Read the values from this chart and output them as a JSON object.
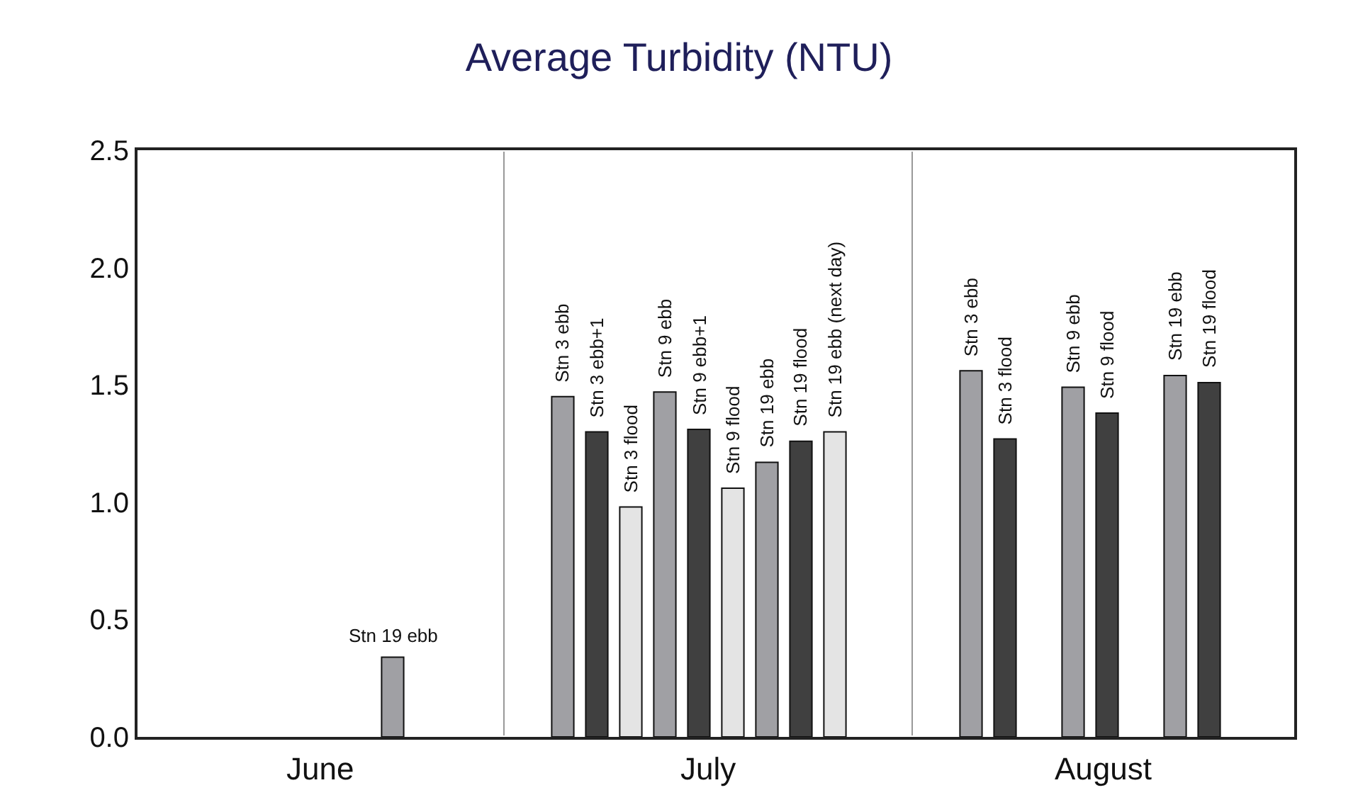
{
  "chart_data": {
    "type": "bar",
    "title": "Average Turbidity (NTU)",
    "categories": [
      null,
      null,
      null,
      null,
      null,
      null,
      null,
      "Stn 19 ebb",
      null,
      null,
      null,
      null,
      "Stn 3 ebb",
      "Stn 3 ebb+1",
      "Stn 3 flood",
      "Stn 9 ebb",
      "Stn 9 ebb+1",
      "Stn 9 flood",
      "Stn 19 ebb",
      "Stn 19 flood",
      "Stn 19 ebb (next day)",
      null,
      null,
      null,
      "Stn 3 ebb",
      "Stn 3 flood",
      null,
      "Stn 9 ebb",
      "Stn 9 flood",
      null,
      "Stn 19 ebb",
      "Stn 19 flood",
      null,
      null
    ],
    "values": [
      null,
      null,
      null,
      null,
      null,
      null,
      null,
      0.34,
      null,
      null,
      null,
      null,
      1.45,
      1.3,
      0.98,
      1.47,
      1.31,
      1.06,
      1.17,
      1.26,
      1.3,
      null,
      null,
      null,
      1.56,
      1.27,
      null,
      1.49,
      1.38,
      null,
      1.54,
      1.51,
      null,
      null
    ],
    "colors": [
      null,
      null,
      null,
      null,
      null,
      null,
      null,
      "#a0a0a4",
      null,
      null,
      null,
      null,
      "#a0a0a4",
      "#404040",
      "#e4e4e4",
      "#a0a0a4",
      "#404040",
      "#e4e4e4",
      "#a0a0a4",
      "#404040",
      "#e4e4e4",
      null,
      null,
      null,
      "#a0a0a4",
      "#404040",
      null,
      "#a0a0a4",
      "#404040",
      null,
      "#a0a0a4",
      "#404040",
      null,
      null
    ],
    "ylim": [
      0,
      2.5
    ],
    "yticks": [
      {
        "value": 0,
        "label": "0.0"
      },
      {
        "value": 0.5,
        "label": "0.5"
      },
      {
        "value": 1,
        "label": "1.0"
      },
      {
        "value": 1.5,
        "label": "1.5"
      },
      {
        "value": 2,
        "label": "2.0"
      },
      {
        "value": 2.5,
        "label": "2.5"
      }
    ],
    "annotations": [
      "June",
      "July",
      "August"
    ],
    "tick_labels": "y",
    "grid": false
  }
}
